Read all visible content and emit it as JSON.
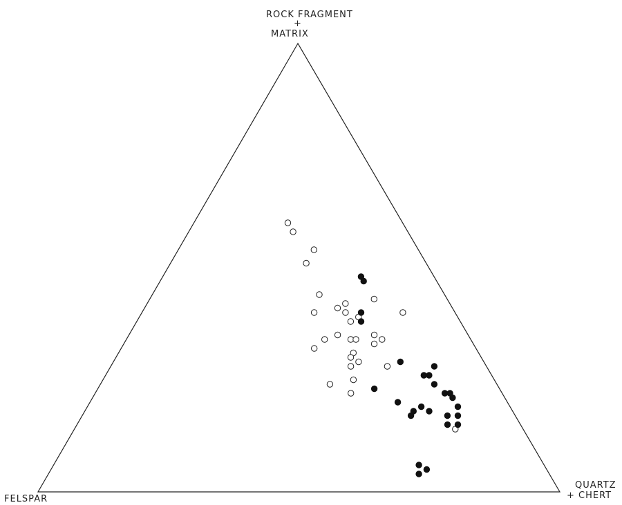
{
  "chart_data": {
    "type": "scatter",
    "subtype": "ternary",
    "title": "",
    "vertices": {
      "top": {
        "line1": "ROCK FRAGMENT",
        "line2": "+",
        "line3": "MATRIX"
      },
      "left": {
        "line1": "FELSPAR"
      },
      "right": {
        "line1": "QUARTZ",
        "line2": "+ CHERT"
      }
    },
    "components_order": [
      "rock_fragment_matrix",
      "felspar",
      "quartz_chert"
    ],
    "legend": "none",
    "grid": false,
    "series": [
      {
        "marker": "open-circle",
        "points": [
          [
            0.6,
            0.22,
            0.18
          ],
          [
            0.58,
            0.22,
            0.2
          ],
          [
            0.54,
            0.2,
            0.26
          ],
          [
            0.51,
            0.23,
            0.26
          ],
          [
            0.44,
            0.24,
            0.32
          ],
          [
            0.42,
            0.2,
            0.38
          ],
          [
            0.41,
            0.22,
            0.37
          ],
          [
            0.4,
            0.21,
            0.39
          ],
          [
            0.39,
            0.19,
            0.42
          ],
          [
            0.38,
            0.21,
            0.41
          ],
          [
            0.4,
            0.1,
            0.5
          ],
          [
            0.4,
            0.27,
            0.33
          ],
          [
            0.35,
            0.25,
            0.4
          ],
          [
            0.34,
            0.28,
            0.38
          ],
          [
            0.34,
            0.23,
            0.43
          ],
          [
            0.34,
            0.22,
            0.44
          ],
          [
            0.33,
            0.19,
            0.48
          ],
          [
            0.32,
            0.31,
            0.37
          ],
          [
            0.31,
            0.24,
            0.45
          ],
          [
            0.3,
            0.25,
            0.45
          ],
          [
            0.29,
            0.24,
            0.47
          ],
          [
            0.28,
            0.26,
            0.46
          ],
          [
            0.28,
            0.19,
            0.53
          ],
          [
            0.25,
            0.27,
            0.48
          ],
          [
            0.24,
            0.32,
            0.44
          ],
          [
            0.22,
            0.29,
            0.49
          ],
          [
            0.43,
            0.14,
            0.43
          ],
          [
            0.34,
            0.17,
            0.49
          ],
          [
            0.35,
            0.18,
            0.47
          ],
          [
            0.14,
            0.13,
            0.73
          ]
        ]
      },
      {
        "marker": "filled-circle",
        "points": [
          [
            0.48,
            0.14,
            0.38
          ],
          [
            0.47,
            0.14,
            0.39
          ],
          [
            0.4,
            0.18,
            0.42
          ],
          [
            0.38,
            0.19,
            0.43
          ],
          [
            0.29,
            0.16,
            0.55
          ],
          [
            0.28,
            0.1,
            0.62
          ],
          [
            0.26,
            0.13,
            0.61
          ],
          [
            0.26,
            0.12,
            0.62
          ],
          [
            0.24,
            0.12,
            0.64
          ],
          [
            0.22,
            0.11,
            0.67
          ],
          [
            0.23,
            0.24,
            0.53
          ],
          [
            0.22,
            0.1,
            0.68
          ],
          [
            0.21,
            0.1,
            0.69
          ],
          [
            0.19,
            0.1,
            0.71
          ],
          [
            0.19,
            0.17,
            0.64
          ],
          [
            0.2,
            0.21,
            0.59
          ],
          [
            0.18,
            0.19,
            0.63
          ],
          [
            0.18,
            0.16,
            0.66
          ],
          [
            0.17,
            0.2,
            0.63
          ],
          [
            0.17,
            0.11,
            0.72
          ],
          [
            0.17,
            0.13,
            0.7
          ],
          [
            0.15,
            0.14,
            0.71
          ],
          [
            0.15,
            0.12,
            0.73
          ],
          [
            0.06,
            0.24,
            0.7
          ],
          [
            0.05,
            0.23,
            0.72
          ],
          [
            0.04,
            0.25,
            0.71
          ]
        ]
      }
    ]
  }
}
